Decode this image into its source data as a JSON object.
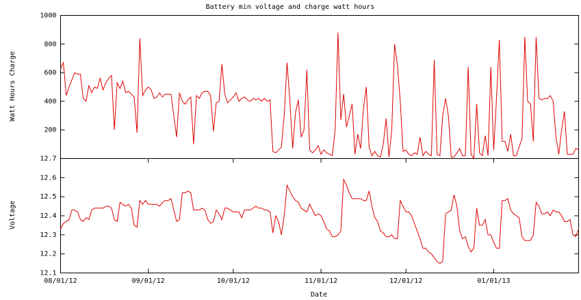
{
  "chart_data": [
    {
      "type": "line",
      "title": "Battery min voltage and charge watt hours",
      "ylabel": "Watt Hours Charge",
      "ylim": [
        0,
        1000
      ],
      "yticks": [
        200,
        400,
        600,
        800,
        1000
      ],
      "series": [
        {
          "color": "#e00000",
          "values": [
            630,
            670,
            440,
            500,
            550,
            600,
            590,
            590,
            420,
            400,
            510,
            460,
            500,
            490,
            560,
            480,
            530,
            560,
            580,
            200,
            530,
            490,
            540,
            460,
            470,
            450,
            430,
            180,
            840,
            440,
            480,
            500,
            480,
            420,
            430,
            460,
            430,
            450,
            450,
            450,
            300,
            150,
            460,
            400,
            380,
            410,
            430,
            100,
            440,
            420,
            460,
            470,
            470,
            440,
            190,
            390,
            400,
            660,
            450,
            390,
            410,
            430,
            460,
            400,
            420,
            430,
            410,
            400,
            420,
            410,
            420,
            400,
            420,
            400,
            410,
            50,
            40,
            60,
            80,
            300,
            670,
            400,
            70,
            320,
            410,
            150,
            200,
            620,
            60,
            40,
            60,
            90,
            30,
            60,
            40,
            30,
            20,
            200,
            880,
            270,
            450,
            220,
            300,
            380,
            30,
            170,
            70,
            350,
            500,
            80,
            20,
            50,
            20,
            10,
            100,
            280,
            10,
            200,
            800,
            650,
            400,
            50,
            60,
            30,
            20,
            40,
            30,
            150,
            20,
            50,
            30,
            20,
            690,
            30,
            20,
            300,
            420,
            300,
            10,
            10,
            40,
            70,
            20,
            20,
            640,
            30,
            0,
            380,
            40,
            20,
            160,
            20,
            640,
            60,
            420,
            830,
            120,
            120,
            50,
            170,
            20,
            20,
            80,
            140,
            850,
            400,
            380,
            120,
            850,
            420,
            410,
            420,
            420,
            440,
            400,
            150,
            30,
            200,
            330,
            30,
            30,
            30,
            70,
            60
          ]
        }
      ]
    },
    {
      "type": "line",
      "ylabel": "Voltage",
      "xlabel": "Date",
      "ylim": [
        12.1,
        12.7
      ],
      "yticks": [
        12.1,
        12.2,
        12.3,
        12.4,
        12.5,
        12.6,
        12.7
      ],
      "xlim": [
        "2012-08-01",
        "2013-01-31"
      ],
      "xticks": [
        {
          "value": "2012-08-01",
          "label": "08/01/12"
        },
        {
          "value": "2012-09-01",
          "label": "09/01/12"
        },
        {
          "value": "2012-10-01",
          "label": "10/01/12"
        },
        {
          "value": "2012-11-01",
          "label": "11/01/12"
        },
        {
          "value": "2012-12-01",
          "label": "12/01/12"
        },
        {
          "value": "2013-01-01",
          "label": "01/01/13"
        }
      ],
      "x": [
        "2012-08-01",
        "2012-08-02",
        "2012-08-03",
        "2012-08-04",
        "2012-08-05",
        "2012-08-06",
        "2012-08-07",
        "2012-08-08",
        "2012-08-09",
        "2012-08-10",
        "2012-08-11",
        "2012-08-12",
        "2012-08-13",
        "2012-08-14",
        "2012-08-15",
        "2012-08-16",
        "2012-08-17",
        "2012-08-18",
        "2012-08-19",
        "2012-08-20",
        "2012-08-21",
        "2012-08-22",
        "2012-08-23",
        "2012-08-24",
        "2012-08-25",
        "2012-08-26",
        "2012-08-27",
        "2012-08-28",
        "2012-08-29",
        "2012-08-30",
        "2012-08-31",
        "2012-09-01",
        "2012-09-02",
        "2012-09-03",
        "2012-09-04",
        "2012-09-05",
        "2012-09-06",
        "2012-09-07",
        "2012-09-08",
        "2012-09-09",
        "2012-09-10",
        "2012-09-11",
        "2012-09-12",
        "2012-09-13",
        "2012-09-14",
        "2012-09-15",
        "2012-09-16",
        "2012-09-17",
        "2012-09-18",
        "2012-09-19",
        "2012-09-20",
        "2012-09-21",
        "2012-09-22",
        "2012-09-23",
        "2012-09-24",
        "2012-09-25",
        "2012-09-26",
        "2012-09-27",
        "2012-09-28",
        "2012-09-29",
        "2012-09-30",
        "2012-10-01",
        "2012-10-02",
        "2012-10-03",
        "2012-10-04",
        "2012-10-05",
        "2012-10-06",
        "2012-10-07",
        "2012-10-08",
        "2012-10-09",
        "2012-10-10",
        "2012-10-11",
        "2012-10-12",
        "2012-10-13",
        "2012-10-14",
        "2012-10-15",
        "2012-10-16",
        "2012-10-17",
        "2012-10-18",
        "2012-10-19",
        "2012-10-20",
        "2012-10-21",
        "2012-10-22",
        "2012-10-23",
        "2012-10-24",
        "2012-10-25",
        "2012-10-26",
        "2012-10-27",
        "2012-10-28",
        "2012-10-29",
        "2012-10-30",
        "2012-10-31",
        "2012-11-01",
        "2012-11-02",
        "2012-11-03",
        "2012-11-04",
        "2012-11-05",
        "2012-11-06",
        "2012-11-07",
        "2012-11-08",
        "2012-11-09",
        "2012-11-10",
        "2012-11-11",
        "2012-11-12",
        "2012-11-13",
        "2012-11-14",
        "2012-11-15",
        "2012-11-16",
        "2012-11-17",
        "2012-11-18",
        "2012-11-19",
        "2012-11-20",
        "2012-11-21",
        "2012-11-22",
        "2012-11-23",
        "2012-11-24",
        "2012-11-25",
        "2012-11-26",
        "2012-11-27",
        "2012-11-28",
        "2012-11-29",
        "2012-11-30",
        "2012-12-01",
        "2012-12-02",
        "2012-12-03",
        "2012-12-04",
        "2012-12-05",
        "2012-12-06",
        "2012-12-07",
        "2012-12-08",
        "2012-12-09",
        "2012-12-10",
        "2012-12-11",
        "2012-12-12",
        "2012-12-13",
        "2012-12-14",
        "2012-12-15",
        "2012-12-16",
        "2012-12-17",
        "2012-12-18",
        "2012-12-19",
        "2012-12-20",
        "2012-12-21",
        "2012-12-22",
        "2012-12-23",
        "2012-12-24",
        "2012-12-25",
        "2012-12-26",
        "2012-12-27",
        "2012-12-28",
        "2012-12-29",
        "2012-12-30",
        "2012-12-31",
        "2013-01-01",
        "2013-01-02",
        "2013-01-03",
        "2013-01-04",
        "2013-01-05",
        "2013-01-06",
        "2013-01-07",
        "2013-01-08",
        "2013-01-09",
        "2013-01-10",
        "2013-01-11",
        "2013-01-12",
        "2013-01-13",
        "2013-01-14",
        "2013-01-15",
        "2013-01-16",
        "2013-01-17",
        "2013-01-18",
        "2013-01-19",
        "2013-01-20",
        "2013-01-21",
        "2013-01-22",
        "2013-01-23",
        "2013-01-24",
        "2013-01-25",
        "2013-01-26",
        "2013-01-27",
        "2013-01-28",
        "2013-01-29",
        "2013-01-30",
        "2013-01-31"
      ],
      "series": [
        {
          "color": "#e00000",
          "values": [
            12.33,
            12.36,
            12.37,
            12.38,
            12.43,
            12.43,
            12.42,
            12.38,
            12.37,
            12.39,
            12.38,
            12.43,
            12.44,
            12.44,
            12.44,
            12.44,
            12.45,
            12.45,
            12.44,
            12.38,
            12.37,
            12.47,
            12.46,
            12.45,
            12.46,
            12.44,
            12.35,
            12.34,
            12.48,
            12.46,
            12.48,
            12.46,
            12.46,
            12.46,
            12.46,
            12.45,
            12.47,
            12.48,
            12.48,
            12.49,
            12.43,
            12.37,
            12.38,
            12.52,
            12.52,
            12.53,
            12.52,
            12.43,
            12.43,
            12.43,
            12.44,
            12.43,
            12.38,
            12.36,
            12.37,
            12.43,
            12.41,
            12.38,
            12.44,
            12.44,
            12.43,
            12.42,
            12.42,
            12.42,
            12.39,
            12.43,
            12.43,
            12.43,
            12.44,
            12.45,
            12.44,
            12.44,
            12.43,
            12.43,
            12.42,
            12.31,
            12.4,
            12.37,
            12.3,
            12.4,
            12.56,
            12.53,
            12.5,
            12.48,
            12.47,
            12.44,
            12.43,
            12.42,
            12.46,
            12.43,
            12.4,
            12.41,
            12.4,
            12.37,
            12.33,
            12.32,
            12.29,
            12.29,
            12.3,
            12.32,
            12.59,
            12.56,
            12.52,
            12.49,
            12.49,
            12.49,
            12.49,
            12.48,
            12.48,
            12.53,
            12.45,
            12.39,
            12.37,
            12.32,
            12.31,
            12.29,
            12.29,
            12.3,
            12.28,
            12.28,
            12.48,
            12.45,
            12.42,
            12.42,
            12.4,
            12.36,
            12.32,
            12.28,
            12.23,
            12.23,
            12.21,
            12.2,
            12.18,
            12.16,
            12.15,
            12.16,
            12.41,
            12.42,
            12.43,
            12.51,
            12.45,
            12.32,
            12.28,
            12.29,
            12.24,
            12.21,
            12.23,
            12.44,
            12.35,
            12.35,
            12.38,
            12.3,
            12.3,
            12.26,
            12.23,
            12.23,
            12.48,
            12.48,
            12.49,
            12.43,
            12.41,
            12.4,
            12.39,
            12.29,
            12.27,
            12.27,
            12.27,
            12.3,
            12.47,
            12.45,
            12.41,
            12.41,
            12.42,
            12.4,
            12.43,
            12.42,
            12.42,
            12.4,
            12.37,
            12.37,
            12.38,
            12.3,
            12.29,
            12.33
          ]
        }
      ]
    }
  ]
}
